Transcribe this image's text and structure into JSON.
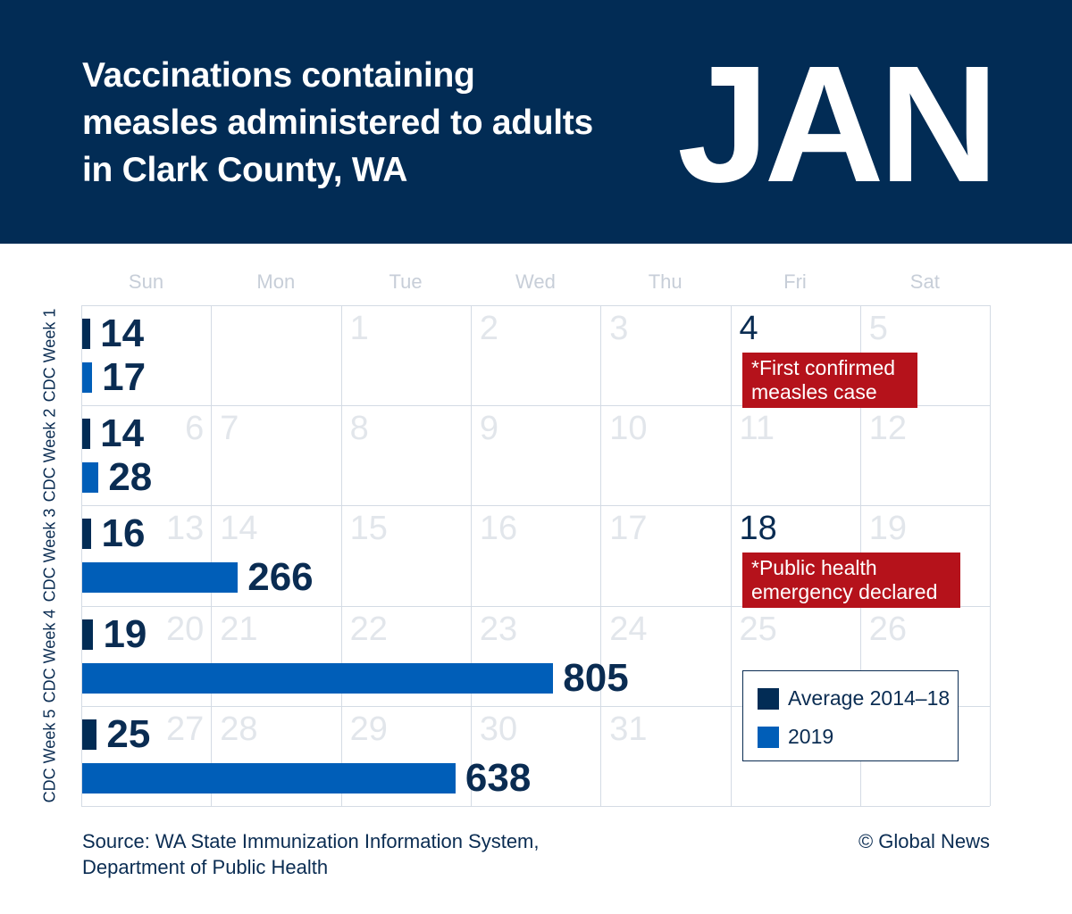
{
  "header": {
    "title": "Vaccinations containing measles administered to adults in Clark County, WA",
    "month": "JAN"
  },
  "colors": {
    "header": "#022c55",
    "average": "#022c55",
    "y2019": "#005eb8",
    "annotation": "#b5121b"
  },
  "calendar": {
    "weekdays": [
      "Sun",
      "Mon",
      "Tue",
      "Wed",
      "Thu",
      "Fri",
      "Sat"
    ],
    "weeks": [
      {
        "label": "CDC Week 1",
        "days": [
          "",
          "",
          "1",
          "2",
          "3",
          "4",
          "5"
        ]
      },
      {
        "label": "CDC Week 2",
        "days": [
          "6",
          "7",
          "8",
          "9",
          "10",
          "11",
          "12"
        ]
      },
      {
        "label": "CDC Week 3",
        "days": [
          "13",
          "14",
          "15",
          "16",
          "17",
          "18",
          "19"
        ]
      },
      {
        "label": "CDC Week 4",
        "days": [
          "20",
          "21",
          "22",
          "23",
          "24",
          "25",
          "26"
        ]
      },
      {
        "label": "CDC Week 5",
        "days": [
          "27",
          "28",
          "29",
          "30",
          "31",
          "",
          ""
        ]
      }
    ],
    "highlighted_days": [
      "4",
      "18"
    ]
  },
  "annotations": [
    {
      "day": "4",
      "text": "*First confirmed measles case"
    },
    {
      "day": "18",
      "text": "*Public health emergency declared"
    }
  ],
  "chart_data": {
    "type": "bar",
    "orientation": "horizontal",
    "categories": [
      "CDC Week 1",
      "CDC Week 2",
      "CDC Week 3",
      "CDC Week 4",
      "CDC Week 5"
    ],
    "series": [
      {
        "name": "Average 2014–18",
        "values": [
          14,
          14,
          16,
          19,
          25
        ]
      },
      {
        "name": "2019",
        "values": [
          17,
          28,
          266,
          805,
          638
        ]
      }
    ],
    "legend": "bottom-right"
  },
  "legend": {
    "items": [
      "Average 2014–18",
      "2019"
    ]
  },
  "footer": {
    "source": "Source: WA State Immunization Information System, Department of Public Health",
    "credit": "© Global News"
  }
}
